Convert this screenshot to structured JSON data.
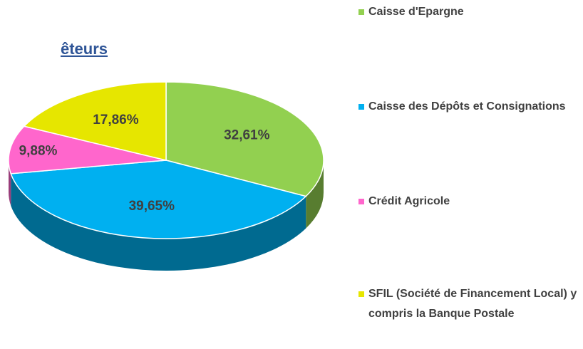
{
  "chart_data": {
    "type": "pie3d",
    "title": "êteurs",
    "categories": [
      "Caisse d'Epargne",
      "Caisse des Dépôts et Consignations",
      "Crédit Agricole",
      "SFIL (Société de Financement Local) y compris la Banque Postale"
    ],
    "values": [
      32.61,
      39.65,
      9.88,
      17.86
    ],
    "value_labels": [
      "32,61%",
      "39,65%",
      "9,88%",
      "17,86%"
    ],
    "colors": [
      "#92d050",
      "#00b0f0",
      "#ff66cc",
      "#e6e600"
    ],
    "legend": "right"
  }
}
